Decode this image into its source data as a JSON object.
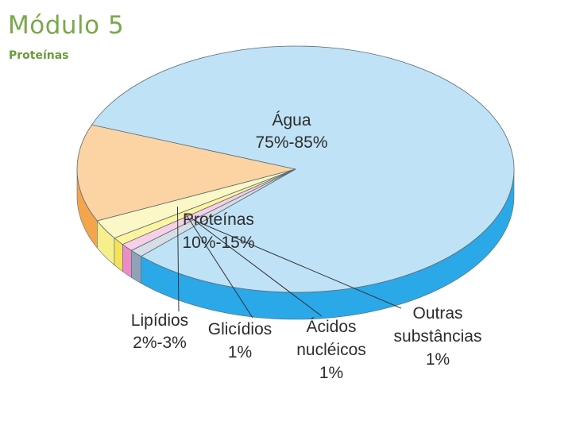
{
  "header": {
    "title": "Módulo 5",
    "subtitle": "Proteínas"
  },
  "chart_data": {
    "type": "pie",
    "style": "3d",
    "title": "",
    "legend": "none",
    "slices": [
      {
        "label": "Água",
        "value_label": "75%-85%",
        "value": 80,
        "color": "#bfe2f6",
        "side_color": "#2aa8e8"
      },
      {
        "label": "Proteínas",
        "value_label": "10%-15%",
        "value": 12.5,
        "color": "#fcd3a2",
        "side_color": "#f4a54c"
      },
      {
        "label": "Lipídios",
        "value_label": "2%-3%",
        "value": 2.5,
        "color": "#fbf7c6",
        "side_color": "#f6ef8c"
      },
      {
        "label": "Glicídios",
        "value_label": "1%",
        "value": 1,
        "color": "#fdf4a0",
        "side_color": "#f3e35c"
      },
      {
        "label": "Ácidos nucléicos",
        "value_label": "1%",
        "value": 1,
        "color": "#f7cfe6",
        "side_color": "#ea8cc6"
      },
      {
        "label": "Outras substâncias",
        "value_label": "1%",
        "value": 1,
        "color": "#d6dde6",
        "side_color": "#8ea3b8"
      }
    ]
  }
}
